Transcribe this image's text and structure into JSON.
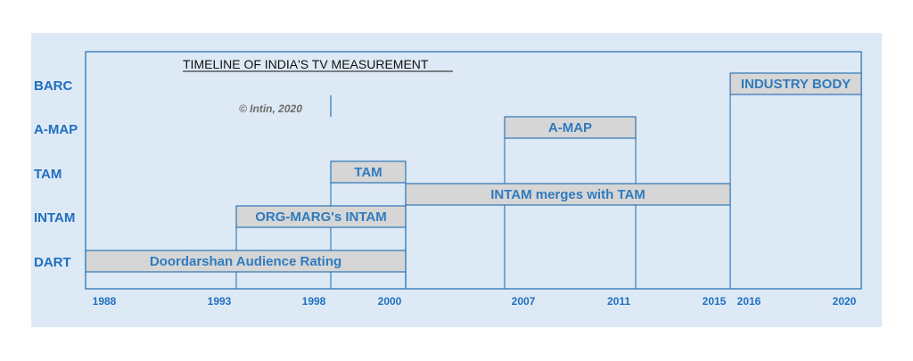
{
  "chart_data": {
    "type": "timeline",
    "title": "TIMELINE OF INDIA'S TV MEASUREMENT",
    "copyright": "© Intin, 2020",
    "rows": [
      "DART",
      "INTAM",
      "TAM",
      "A-MAP",
      "BARC"
    ],
    "ticks": [
      1988,
      1993,
      1998,
      2000,
      2007,
      2011,
      2015,
      2016,
      2020
    ],
    "bars": [
      {
        "label": "Doordarshan Audience Rating",
        "row": "DART",
        "start": 1988,
        "end": 2000
      },
      {
        "label": "ORG-MARG's INTAM",
        "row": "INTAM",
        "start": 1993,
        "end": 2000
      },
      {
        "label": "TAM",
        "row": "TAM",
        "start": 1998,
        "end": 2000
      },
      {
        "label": "INTAM merges with TAM",
        "row": "TAM-INTAM",
        "start": 2000,
        "end": 2015
      },
      {
        "label": "A-MAP",
        "row": "A-MAP",
        "start": 2007,
        "end": 2011
      },
      {
        "label": "INDUSTRY BODY",
        "row": "BARC",
        "start": 2015,
        "end": 2020
      }
    ],
    "colors": {
      "panel": "#dde9f5",
      "bar_fill": "#d6d6d6",
      "border": "#2e75b6",
      "text": "#1f6fc0"
    }
  }
}
